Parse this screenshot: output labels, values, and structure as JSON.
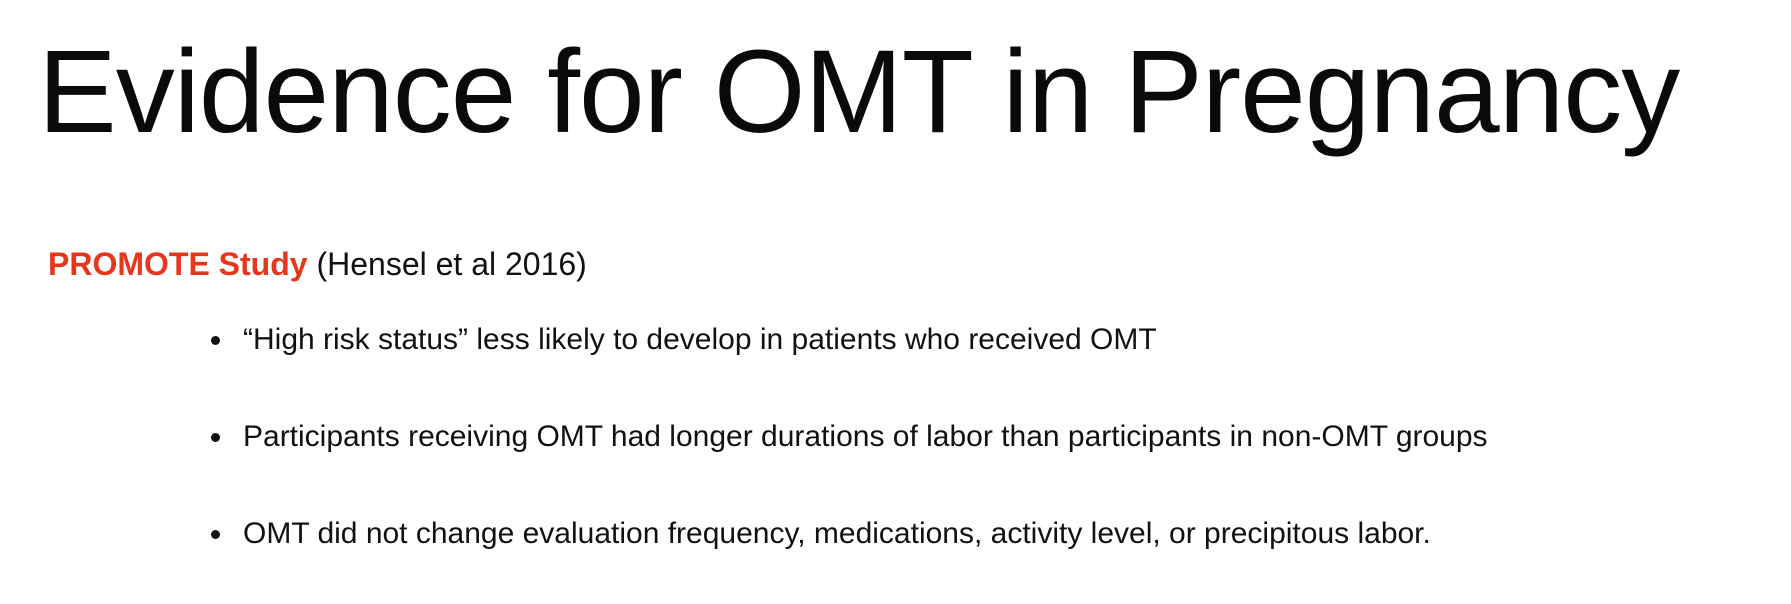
{
  "slide": {
    "title": "Evidence for OMT in Pregnancy",
    "study": {
      "name": "PROMOTE Study",
      "citation": "(Hensel et al 2016)",
      "accent_color": "#e8361d"
    },
    "bullets": [
      "“High risk status” less likely to develop in patients who received OMT",
      "Participants receiving OMT had longer durations of labor than participants in non-OMT groups",
      "OMT did not change evaluation frequency, medications, activity level, or precipitous labor."
    ]
  }
}
